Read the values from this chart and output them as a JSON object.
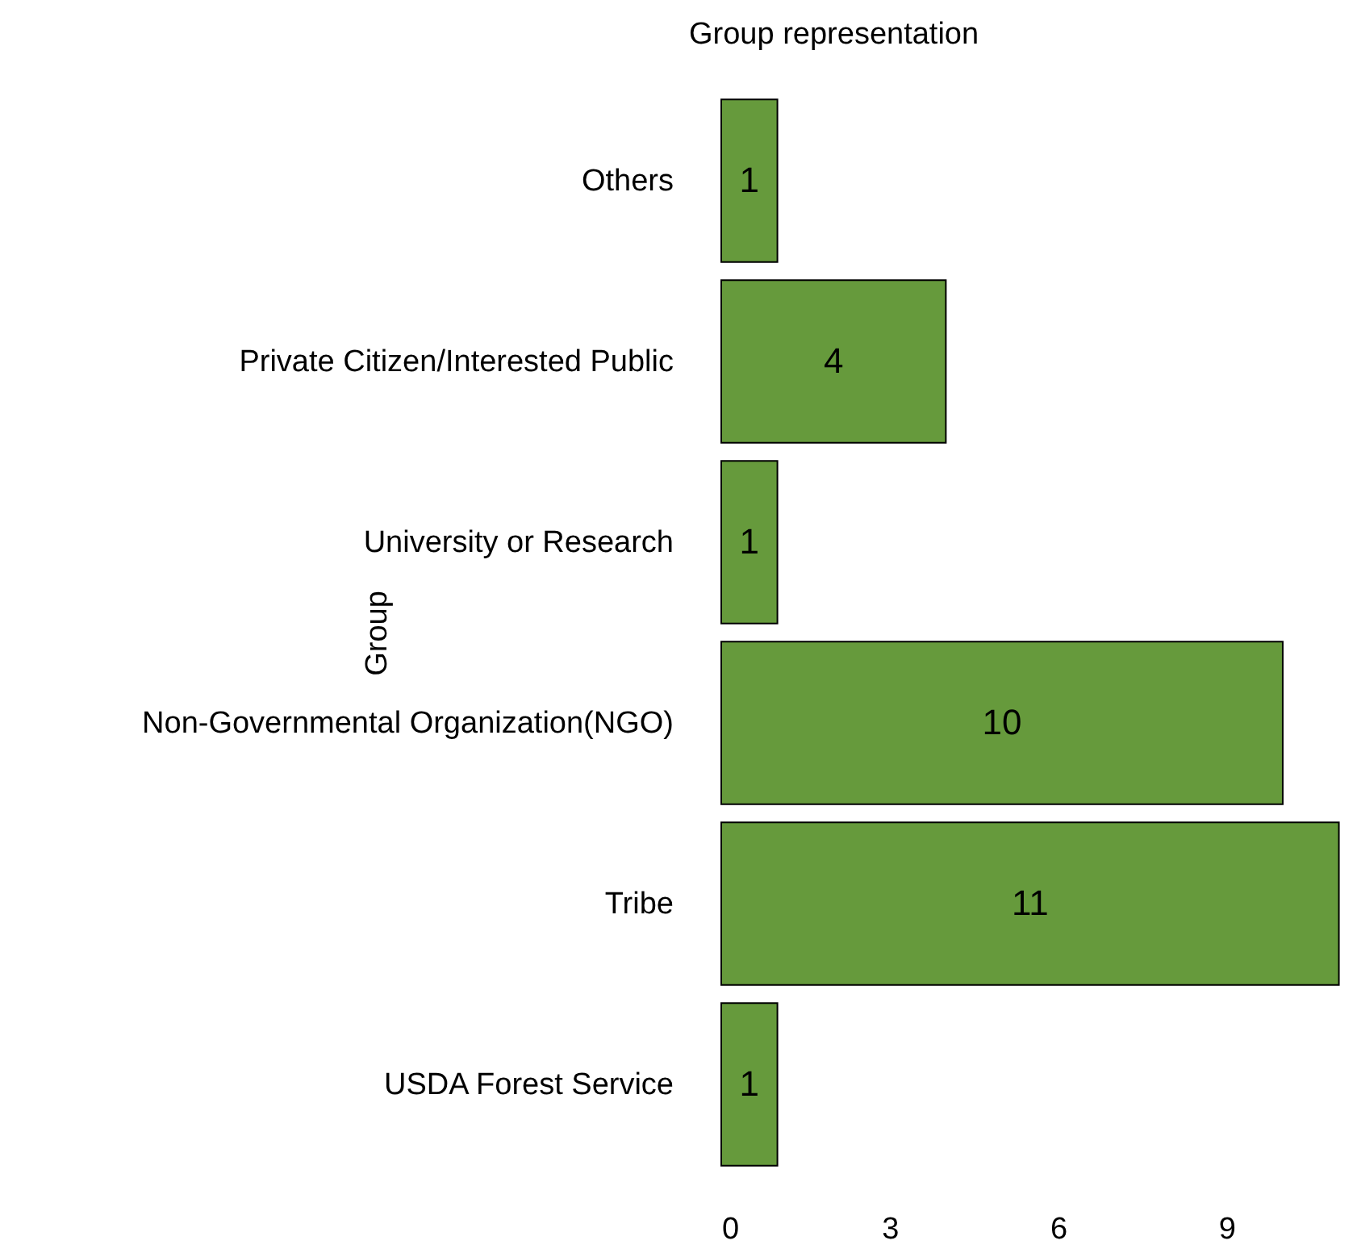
{
  "chart_data": {
    "type": "bar",
    "orientation": "horizontal",
    "title": "Group representation",
    "ylabel": "Group",
    "categories": [
      "Others",
      "Private Citizen/Interested Public",
      "University or Research",
      "Non-Governmental Organization(NGO)",
      "Tribe",
      "USDA Forest Service"
    ],
    "values": [
      1,
      4,
      1,
      10,
      11,
      1
    ],
    "color": "#669a3c",
    "data_labels": true,
    "grid": false,
    "xlim": [
      0,
      11.15
    ],
    "xticks": [
      0,
      3,
      6,
      9
    ]
  }
}
